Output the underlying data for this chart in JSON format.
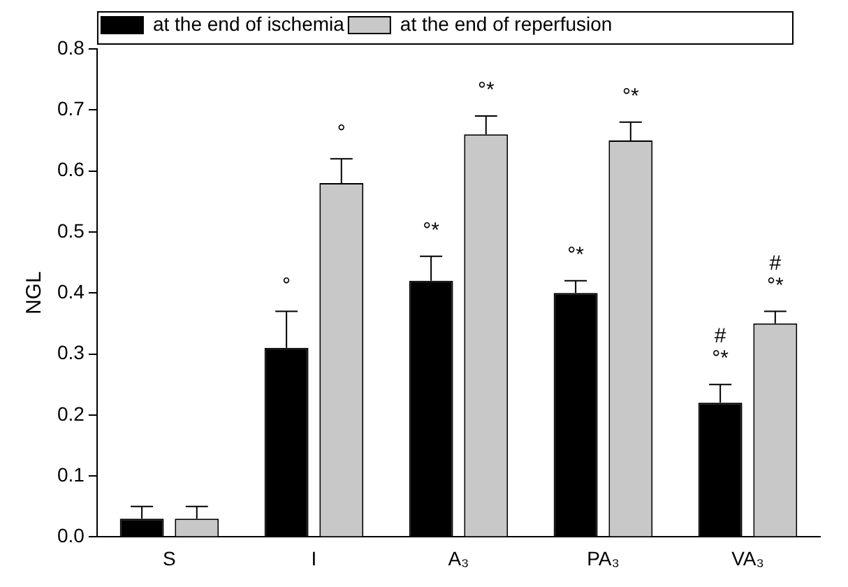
{
  "chart_data": {
    "type": "bar",
    "ylabel": "NGL",
    "categories": [
      "S",
      "I",
      "A₃",
      "PA₃",
      "VA₃"
    ],
    "series": [
      {
        "name": "at the end of ischemia",
        "color": "#000000",
        "values": [
          0.03,
          0.31,
          0.42,
          0.4,
          0.22
        ],
        "errors": [
          [
            0.03,
            0.05
          ],
          [
            0.31,
            0.37
          ],
          [
            0.42,
            0.46
          ],
          [
            0.4,
            0.42
          ],
          [
            0.22,
            0.25
          ]
        ]
      },
      {
        "name": "at the end of reperfusion",
        "color": "#c8c8c8",
        "values": [
          0.03,
          0.58,
          0.66,
          0.65,
          0.35
        ],
        "errors": [
          [
            0.03,
            0.05
          ],
          [
            0.58,
            0.62
          ],
          [
            0.66,
            0.69
          ],
          [
            0.65,
            0.68
          ],
          [
            0.35,
            0.37
          ]
        ]
      }
    ],
    "ylim": [
      0,
      0.8
    ],
    "yticks": [
      {
        "value": 0,
        "label": "0.0"
      },
      0.1,
      0.2,
      0.3,
      0.4,
      0.5,
      0.6,
      0.7,
      0.8
    ],
    "legend": "top left",
    "grid": false,
    "annotations": [
      "°",
      "°",
      "°*",
      "°*",
      "°*",
      "°*",
      "°*",
      "#",
      "°*",
      "#"
    ]
  }
}
